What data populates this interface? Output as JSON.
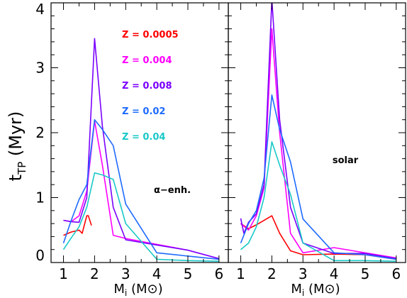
{
  "chart_data": {
    "type": "line",
    "ylabel_main": "t",
    "ylabel_sub": "TP",
    "ylabel_unit": "(Myr)",
    "xlabel_main": "M",
    "xlabel_sub": "i",
    "xlabel_unit": "(M⊙)",
    "xlim": [
      0.6,
      6.3
    ],
    "ylim": [
      0,
      4
    ],
    "x_ticks": [
      1,
      2,
      3,
      4,
      5,
      6
    ],
    "y_ticks": [
      0,
      1,
      2,
      3,
      4
    ],
    "legend": {
      "placement": "top-center of left panel",
      "entries": [
        "Z = 0.0005",
        "Z = 0.004",
        "Z = 0.008",
        "Z = 0.02",
        "Z = 0.04"
      ]
    },
    "panels": [
      {
        "annotation": "α−enh.",
        "series": [
          {
            "name": "Z = 0.0005",
            "color": "#ff0000",
            "x": [
              1.0,
              1.25,
              1.5,
              1.6,
              1.75,
              1.8,
              1.9
            ],
            "y": [
              0.42,
              0.47,
              0.5,
              0.45,
              0.72,
              0.72,
              0.57
            ]
          },
          {
            "name": "Z = 0.004",
            "color": "#ff00ff",
            "x": [
              1.0,
              1.25,
              1.5,
              1.75,
              2.0,
              2.25,
              2.6,
              3.0,
              4.0,
              5.0,
              6.0
            ],
            "y": [
              0.65,
              0.63,
              0.72,
              1.1,
              2.18,
              1.5,
              0.42,
              0.37,
              0.28,
              0.19,
              0.06
            ]
          },
          {
            "name": "Z = 0.008",
            "color": "#7a00ff",
            "x": [
              1.0,
              1.25,
              1.5,
              1.75,
              2.0,
              2.25,
              2.6,
              3.0,
              4.0,
              5.0,
              6.0
            ],
            "y": [
              0.65,
              0.63,
              0.62,
              1.0,
              3.45,
              2.1,
              0.85,
              0.35,
              0.27,
              0.19,
              0.06
            ]
          },
          {
            "name": "Z = 0.02",
            "color": "#1e6bff",
            "x": [
              1.0,
              1.25,
              1.5,
              1.75,
              2.0,
              2.25,
              2.6,
              3.0,
              4.0,
              5.0,
              6.0
            ],
            "y": [
              0.3,
              0.65,
              0.97,
              1.2,
              2.2,
              2.05,
              1.8,
              0.9,
              0.15,
              0.1,
              0.05
            ]
          },
          {
            "name": "Z = 0.04",
            "color": "#19c8c8",
            "x": [
              1.0,
              1.25,
              1.5,
              1.75,
              2.0,
              2.25,
              2.6,
              3.0,
              4.0,
              5.0,
              6.0
            ],
            "y": [
              0.2,
              0.38,
              0.55,
              0.85,
              1.38,
              1.35,
              1.28,
              0.6,
              0.05,
              0.03,
              0.02
            ]
          }
        ]
      },
      {
        "annotation": "solar",
        "series": [
          {
            "name": "Z = 0.0005",
            "color": "#ff0000",
            "x": [
              1.0,
              1.25,
              1.5,
              2.0,
              2.25,
              2.6,
              3.0,
              4.0,
              5.0,
              6.0
            ],
            "y": [
              0.6,
              0.52,
              0.58,
              0.72,
              0.45,
              0.18,
              0.12,
              0.13,
              0.12,
              0.05
            ]
          },
          {
            "name": "Z = 0.004",
            "color": "#ff00ff",
            "x": [
              1.0,
              1.25,
              1.5,
              1.75,
              2.0,
              2.25,
              2.6,
              3.0,
              4.0,
              5.0,
              6.0
            ],
            "y": [
              0.6,
              0.5,
              0.72,
              1.15,
              3.6,
              2.0,
              0.45,
              0.15,
              0.23,
              0.15,
              0.07
            ]
          },
          {
            "name": "Z = 0.008",
            "color": "#7a00ff",
            "x": [
              1.0,
              1.1,
              1.25,
              1.5,
              1.75,
              2.0,
              2.25,
              2.6,
              3.0,
              4.0,
              5.0,
              6.0
            ],
            "y": [
              0.68,
              0.45,
              0.62,
              0.75,
              1.2,
              4.05,
              2.2,
              0.85,
              0.3,
              0.14,
              0.14,
              0.06
            ]
          },
          {
            "name": "Z = 0.02",
            "color": "#1e6bff",
            "x": [
              1.0,
              1.25,
              1.5,
              1.75,
              2.0,
              2.25,
              2.6,
              3.0,
              4.0,
              5.0,
              6.0
            ],
            "y": [
              0.3,
              0.6,
              0.8,
              1.3,
              2.58,
              2.05,
              1.55,
              0.67,
              0.15,
              0.12,
              0.05
            ]
          },
          {
            "name": "Z = 0.04",
            "color": "#19c8c8",
            "x": [
              1.0,
              1.25,
              1.5,
              1.75,
              2.0,
              2.25,
              2.6,
              3.0,
              4.0,
              5.0,
              6.0
            ],
            "y": [
              0.2,
              0.3,
              0.55,
              1.0,
              1.86,
              1.5,
              1.05,
              0.3,
              0.03,
              0.03,
              0.02
            ]
          }
        ]
      }
    ]
  }
}
